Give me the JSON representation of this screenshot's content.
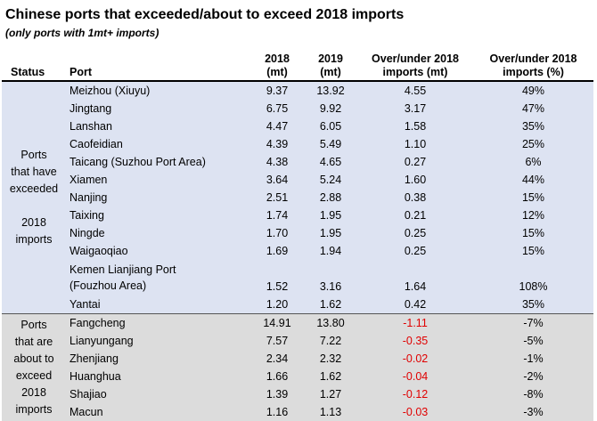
{
  "title": "Chinese ports that exceeded/about to exceed 2018 imports",
  "subtitle": "(only ports with 1mt+ imports)",
  "headers": {
    "status": "Status",
    "port": "Port",
    "y2018": "2018\n(mt)",
    "y2019": "2019\n(mt)",
    "over_mt": "Over/under 2018\nimports (mt)",
    "over_pct": "Over/under 2018\nimports (%)"
  },
  "groups": [
    {
      "status": "Ports\nthat have\nexceeded\n\n2018\nimports",
      "rows": [
        {
          "port": "Meizhou (Xiuyu)",
          "y2018": "9.37",
          "y2019": "13.92",
          "diff": "4.55",
          "pct": "49%"
        },
        {
          "port": "Jingtang",
          "y2018": "6.75",
          "y2019": "9.92",
          "diff": "3.17",
          "pct": "47%"
        },
        {
          "port": "Lanshan",
          "y2018": "4.47",
          "y2019": "6.05",
          "diff": "1.58",
          "pct": "35%"
        },
        {
          "port": "Caofeidian",
          "y2018": "4.39",
          "y2019": "5.49",
          "diff": "1.10",
          "pct": "25%"
        },
        {
          "port": "Taicang (Suzhou Port Area)",
          "y2018": "4.38",
          "y2019": "4.65",
          "diff": "0.27",
          "pct": "6%"
        },
        {
          "port": "Xiamen",
          "y2018": "3.64",
          "y2019": "5.24",
          "diff": "1.60",
          "pct": "44%"
        },
        {
          "port": "Nanjing",
          "y2018": "2.51",
          "y2019": "2.88",
          "diff": "0.38",
          "pct": "15%"
        },
        {
          "port": "Taixing",
          "y2018": "1.74",
          "y2019": "1.95",
          "diff": "0.21",
          "pct": "12%"
        },
        {
          "port": "Ningde",
          "y2018": "1.70",
          "y2019": "1.95",
          "diff": "0.25",
          "pct": "15%"
        },
        {
          "port": "Waigaoqiao",
          "y2018": "1.69",
          "y2019": "1.94",
          "diff": "0.25",
          "pct": "15%"
        },
        {
          "port": "Kemen Lianjiang Port\n(Fouzhou Area)",
          "y2018": "1.52",
          "y2019": "3.16",
          "diff": "1.64",
          "pct": "108%"
        },
        {
          "port": "Yantai",
          "y2018": "1.20",
          "y2019": "1.62",
          "diff": "0.42",
          "pct": "35%"
        }
      ]
    },
    {
      "status": "Ports\nthat are\nabout to\nexceed\n2018\nimports",
      "rows": [
        {
          "port": "Fangcheng",
          "y2018": "14.91",
          "y2019": "13.80",
          "diff": "-1.11",
          "pct": "-7%"
        },
        {
          "port": "Lianyungang",
          "y2018": "7.57",
          "y2019": "7.22",
          "diff": "-0.35",
          "pct": "-5%"
        },
        {
          "port": "Zhenjiang",
          "y2018": "2.34",
          "y2019": "2.32",
          "diff": "-0.02",
          "pct": "-1%"
        },
        {
          "port": "Huanghua",
          "y2018": "1.66",
          "y2019": "1.62",
          "diff": "-0.04",
          "pct": "-2%"
        },
        {
          "port": "Shajiao",
          "y2018": "1.39",
          "y2019": "1.27",
          "diff": "-0.12",
          "pct": "-8%"
        },
        {
          "port": "Macun",
          "y2018": "1.16",
          "y2019": "1.13",
          "diff": "-0.03",
          "pct": "-3%"
        }
      ]
    }
  ],
  "colors": {
    "exceeded_bg": "#dde3f2",
    "about_bg": "#dcdcdc",
    "negative": "#e00000"
  }
}
